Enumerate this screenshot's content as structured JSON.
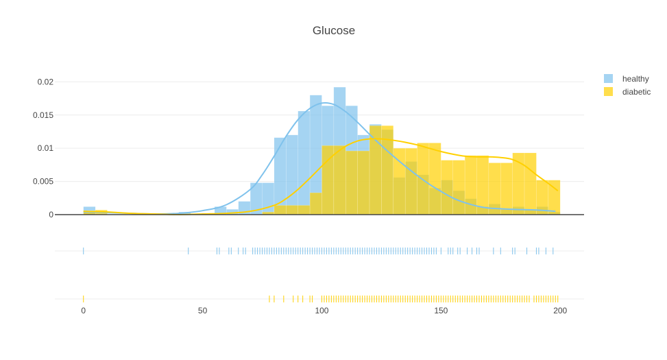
{
  "chart_data": {
    "type": "histogram",
    "title": "Glucose",
    "xlabel": "",
    "ylabel": "",
    "xlim": [
      -12,
      210
    ],
    "ylim": [
      0,
      0.022
    ],
    "bin_width": 5,
    "y_ticks": [
      0,
      0.005,
      0.01,
      0.015,
      0.02
    ],
    "y_tick_labels": [
      "0",
      "0.005",
      "0.01",
      "0.015",
      "0.02"
    ],
    "x_ticks": [
      0,
      50,
      100,
      150,
      200
    ],
    "x_tick_labels": [
      "0",
      "50",
      "100",
      "150",
      "200"
    ],
    "grid": true,
    "legend_position": "top-right",
    "barmode": "overlay",
    "series": [
      {
        "name": "healthy",
        "color": "#7fc2ec",
        "bins": [
          {
            "x0": 0,
            "x1": 5,
            "density": 0.0012
          },
          {
            "x0": 40,
            "x1": 45,
            "density": 0.0004
          },
          {
            "x0": 55,
            "x1": 60,
            "density": 0.0012
          },
          {
            "x0": 60,
            "x1": 65,
            "density": 0.0008
          },
          {
            "x0": 65,
            "x1": 70,
            "density": 0.002
          },
          {
            "x0": 70,
            "x1": 75,
            "density": 0.0048
          },
          {
            "x0": 75,
            "x1": 80,
            "density": 0.0048
          },
          {
            "x0": 80,
            "x1": 85,
            "density": 0.0116
          },
          {
            "x0": 85,
            "x1": 90,
            "density": 0.012
          },
          {
            "x0": 90,
            "x1": 95,
            "density": 0.0156
          },
          {
            "x0": 95,
            "x1": 100,
            "density": 0.018
          },
          {
            "x0": 100,
            "x1": 105,
            "density": 0.0164
          },
          {
            "x0": 105,
            "x1": 110,
            "density": 0.0192
          },
          {
            "x0": 110,
            "x1": 115,
            "density": 0.0164
          },
          {
            "x0": 115,
            "x1": 120,
            "density": 0.012
          },
          {
            "x0": 120,
            "x1": 125,
            "density": 0.0136
          },
          {
            "x0": 125,
            "x1": 130,
            "density": 0.0128
          },
          {
            "x0": 130,
            "x1": 135,
            "density": 0.0056
          },
          {
            "x0": 135,
            "x1": 140,
            "density": 0.008
          },
          {
            "x0": 140,
            "x1": 145,
            "density": 0.006
          },
          {
            "x0": 145,
            "x1": 150,
            "density": 0.004
          },
          {
            "x0": 150,
            "x1": 155,
            "density": 0.0052
          },
          {
            "x0": 155,
            "x1": 160,
            "density": 0.0036
          },
          {
            "x0": 160,
            "x1": 165,
            "density": 0.0024
          },
          {
            "x0": 165,
            "x1": 170,
            "density": 0.0012
          },
          {
            "x0": 170,
            "x1": 175,
            "density": 0.0016
          },
          {
            "x0": 175,
            "x1": 180,
            "density": 0.0008
          },
          {
            "x0": 180,
            "x1": 185,
            "density": 0.0012
          },
          {
            "x0": 185,
            "x1": 190,
            "density": 0.0008
          },
          {
            "x0": 190,
            "x1": 195,
            "density": 0.0012
          },
          {
            "x0": 195,
            "x1": 200,
            "density": 0.0004
          }
        ],
        "kde": [
          {
            "x": 0,
            "y": 0.0004
          },
          {
            "x": 10,
            "y": 0.0003
          },
          {
            "x": 20,
            "y": 0.0002
          },
          {
            "x": 30,
            "y": 0.0001
          },
          {
            "x": 40,
            "y": 0.0002
          },
          {
            "x": 50,
            "y": 0.0006
          },
          {
            "x": 60,
            "y": 0.0015
          },
          {
            "x": 70,
            "y": 0.0038
          },
          {
            "x": 75,
            "y": 0.006
          },
          {
            "x": 80,
            "y": 0.0088
          },
          {
            "x": 85,
            "y": 0.0118
          },
          {
            "x": 90,
            "y": 0.0143
          },
          {
            "x": 95,
            "y": 0.016
          },
          {
            "x": 100,
            "y": 0.0168
          },
          {
            "x": 105,
            "y": 0.0166
          },
          {
            "x": 110,
            "y": 0.0155
          },
          {
            "x": 115,
            "y": 0.0139
          },
          {
            "x": 120,
            "y": 0.0121
          },
          {
            "x": 125,
            "y": 0.0104
          },
          {
            "x": 130,
            "y": 0.0088
          },
          {
            "x": 135,
            "y": 0.0073
          },
          {
            "x": 140,
            "y": 0.0059
          },
          {
            "x": 145,
            "y": 0.0046
          },
          {
            "x": 150,
            "y": 0.0035
          },
          {
            "x": 155,
            "y": 0.0025
          },
          {
            "x": 160,
            "y": 0.0018
          },
          {
            "x": 165,
            "y": 0.0013
          },
          {
            "x": 170,
            "y": 0.001
          },
          {
            "x": 180,
            "y": 0.0008
          },
          {
            "x": 190,
            "y": 0.0007
          },
          {
            "x": 198,
            "y": 0.0005
          }
        ],
        "rug": [
          0,
          44,
          56,
          57,
          61,
          62,
          65,
          67,
          68,
          71,
          72,
          73,
          74,
          75,
          76,
          77,
          78,
          79,
          80,
          81,
          82,
          83,
          84,
          85,
          86,
          87,
          88,
          89,
          90,
          91,
          92,
          93,
          94,
          95,
          96,
          97,
          98,
          99,
          100,
          101,
          102,
          103,
          104,
          105,
          106,
          107,
          108,
          109,
          110,
          111,
          112,
          113,
          114,
          115,
          116,
          117,
          118,
          119,
          120,
          121,
          122,
          123,
          124,
          125,
          126,
          127,
          128,
          129,
          130,
          131,
          132,
          133,
          134,
          135,
          136,
          137,
          138,
          139,
          140,
          141,
          142,
          143,
          144,
          145,
          146,
          147,
          148,
          150,
          153,
          154,
          155,
          157,
          158,
          161,
          163,
          165,
          166,
          172,
          175,
          180,
          181,
          186,
          190,
          191,
          194,
          197
        ]
      },
      {
        "name": "diabetic",
        "color": "#ffd000",
        "bins": [
          {
            "x0": 0,
            "x1": 5,
            "density": 0.0006
          },
          {
            "x0": 5,
            "x1": 10,
            "density": 0.0007
          },
          {
            "x0": 75,
            "x1": 80,
            "density": 0.0004
          },
          {
            "x0": 80,
            "x1": 85,
            "density": 0.0014
          },
          {
            "x0": 85,
            "x1": 90,
            "density": 0.0014
          },
          {
            "x0": 90,
            "x1": 95,
            "density": 0.0014
          },
          {
            "x0": 95,
            "x1": 100,
            "density": 0.0033
          },
          {
            "x0": 100,
            "x1": 105,
            "density": 0.0104
          },
          {
            "x0": 105,
            "x1": 110,
            "density": 0.0104
          },
          {
            "x0": 110,
            "x1": 115,
            "density": 0.0096
          },
          {
            "x0": 115,
            "x1": 120,
            "density": 0.0096
          },
          {
            "x0": 120,
            "x1": 125,
            "density": 0.0134
          },
          {
            "x0": 125,
            "x1": 130,
            "density": 0.0134
          },
          {
            "x0": 130,
            "x1": 135,
            "density": 0.01
          },
          {
            "x0": 135,
            "x1": 140,
            "density": 0.01
          },
          {
            "x0": 140,
            "x1": 145,
            "density": 0.0108
          },
          {
            "x0": 145,
            "x1": 150,
            "density": 0.0108
          },
          {
            "x0": 150,
            "x1": 155,
            "density": 0.0082
          },
          {
            "x0": 155,
            "x1": 160,
            "density": 0.0082
          },
          {
            "x0": 160,
            "x1": 165,
            "density": 0.0089
          },
          {
            "x0": 165,
            "x1": 170,
            "density": 0.0089
          },
          {
            "x0": 170,
            "x1": 175,
            "density": 0.0078
          },
          {
            "x0": 175,
            "x1": 180,
            "density": 0.0078
          },
          {
            "x0": 180,
            "x1": 185,
            "density": 0.0093
          },
          {
            "x0": 185,
            "x1": 190,
            "density": 0.0093
          },
          {
            "x0": 190,
            "x1": 195,
            "density": 0.0052
          },
          {
            "x0": 195,
            "x1": 200,
            "density": 0.0052
          }
        ],
        "kde": [
          {
            "x": 0,
            "y": 0.0005
          },
          {
            "x": 10,
            "y": 0.0004
          },
          {
            "x": 20,
            "y": 0.0002
          },
          {
            "x": 30,
            "y": 0.0001
          },
          {
            "x": 40,
            "y": 0.0
          },
          {
            "x": 50,
            "y": 0.0001
          },
          {
            "x": 60,
            "y": 0.0002
          },
          {
            "x": 70,
            "y": 0.0005
          },
          {
            "x": 80,
            "y": 0.0014
          },
          {
            "x": 85,
            "y": 0.0024
          },
          {
            "x": 90,
            "y": 0.0038
          },
          {
            "x": 95,
            "y": 0.0055
          },
          {
            "x": 100,
            "y": 0.0073
          },
          {
            "x": 105,
            "y": 0.009
          },
          {
            "x": 110,
            "y": 0.0103
          },
          {
            "x": 115,
            "y": 0.0111
          },
          {
            "x": 120,
            "y": 0.0114
          },
          {
            "x": 125,
            "y": 0.0114
          },
          {
            "x": 130,
            "y": 0.0112
          },
          {
            "x": 135,
            "y": 0.0109
          },
          {
            "x": 140,
            "y": 0.0105
          },
          {
            "x": 145,
            "y": 0.01
          },
          {
            "x": 150,
            "y": 0.0095
          },
          {
            "x": 155,
            "y": 0.0091
          },
          {
            "x": 160,
            "y": 0.0088
          },
          {
            "x": 165,
            "y": 0.0087
          },
          {
            "x": 170,
            "y": 0.0087
          },
          {
            "x": 175,
            "y": 0.0086
          },
          {
            "x": 180,
            "y": 0.0083
          },
          {
            "x": 185,
            "y": 0.0074
          },
          {
            "x": 190,
            "y": 0.006
          },
          {
            "x": 195,
            "y": 0.0047
          },
          {
            "x": 199,
            "y": 0.0036
          }
        ],
        "rug": [
          0,
          78,
          80,
          84,
          88,
          90,
          92,
          95,
          96,
          100,
          101,
          102,
          103,
          104,
          105,
          106,
          107,
          108,
          109,
          110,
          111,
          112,
          113,
          114,
          115,
          116,
          117,
          118,
          119,
          120,
          121,
          122,
          123,
          124,
          125,
          126,
          127,
          128,
          129,
          130,
          131,
          132,
          133,
          134,
          135,
          136,
          137,
          138,
          139,
          140,
          141,
          142,
          143,
          144,
          145,
          146,
          147,
          148,
          149,
          150,
          151,
          152,
          153,
          154,
          155,
          156,
          157,
          158,
          159,
          160,
          161,
          162,
          163,
          164,
          165,
          166,
          167,
          168,
          169,
          170,
          171,
          172,
          173,
          174,
          175,
          176,
          177,
          178,
          179,
          180,
          181,
          182,
          183,
          184,
          185,
          186,
          187,
          189,
          190,
          191,
          192,
          193,
          194,
          195,
          196,
          197,
          198,
          199
        ]
      }
    ]
  }
}
